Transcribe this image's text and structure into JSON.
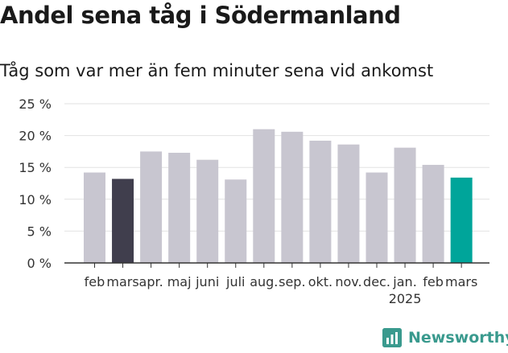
{
  "title": "Andel sena tåg i Södermanland",
  "subtitle": "Tåg som var mer än fem minuter sena vid ankomst",
  "brand": {
    "name": "Newsworthy",
    "icon": "newsworthy-bar-chart-icon",
    "color": "#3a9a8e"
  },
  "chart_data": {
    "type": "bar",
    "categories": [
      "feb",
      "mars",
      "apr.",
      "maj",
      "juni",
      "juli",
      "aug.",
      "sep.",
      "okt.",
      "nov.",
      "dec.",
      "jan.",
      "feb",
      "mars"
    ],
    "year_label": {
      "text": "2025",
      "category_index": 11
    },
    "values": [
      14.2,
      13.2,
      17.5,
      17.3,
      16.2,
      13.1,
      21.0,
      20.6,
      19.2,
      18.6,
      14.2,
      18.1,
      15.4,
      13.4
    ],
    "bar_colors": [
      "#c8c6d0",
      "#403e4d",
      "#c8c6d0",
      "#c8c6d0",
      "#c8c6d0",
      "#c8c6d0",
      "#c8c6d0",
      "#c8c6d0",
      "#c8c6d0",
      "#c8c6d0",
      "#c8c6d0",
      "#c8c6d0",
      "#c8c6d0",
      "#00a59a"
    ],
    "ylim": [
      0,
      25
    ],
    "yticks": [
      0,
      5,
      10,
      15,
      20,
      25
    ],
    "ytick_labels": [
      "0 %",
      "5 %",
      "10 %",
      "15 %",
      "20 %",
      "25 %"
    ],
    "grid": true,
    "xlabel": "",
    "ylabel": ""
  }
}
